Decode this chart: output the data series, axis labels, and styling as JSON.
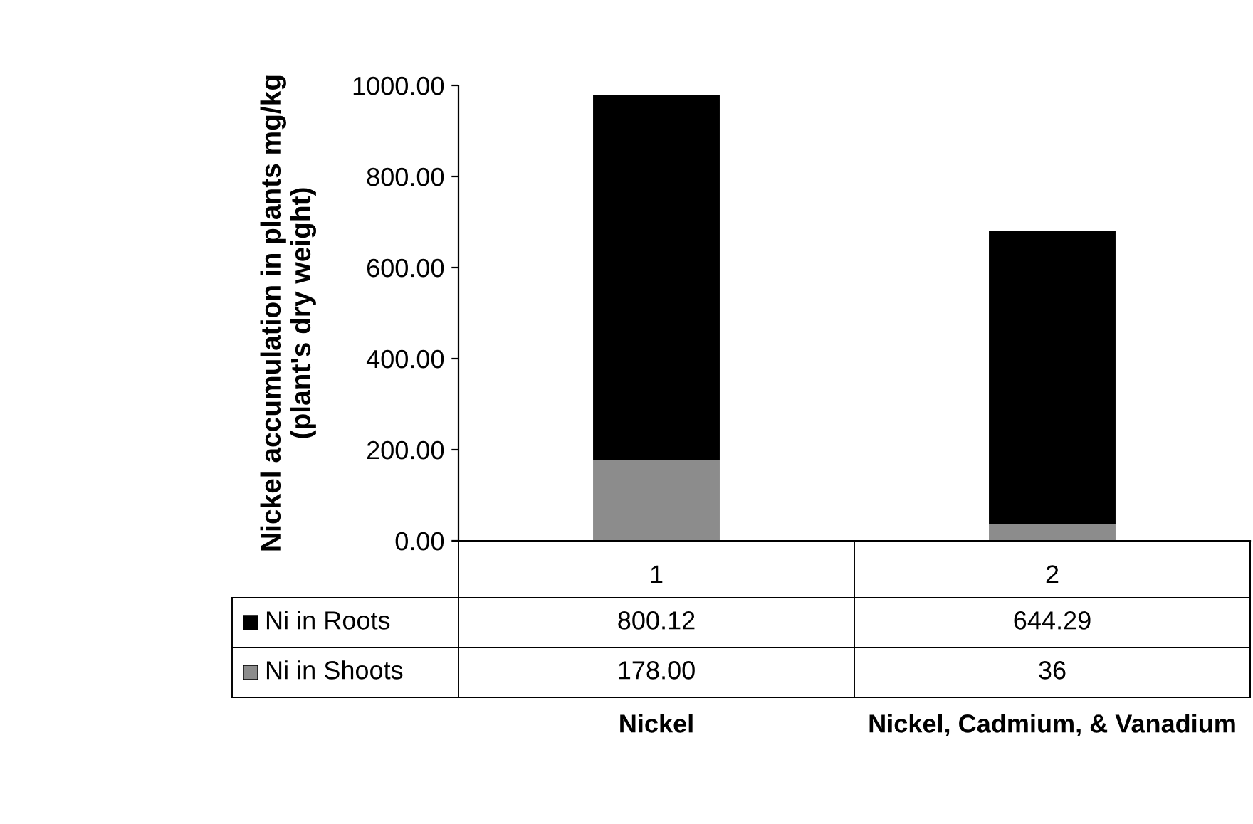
{
  "chart_data": {
    "type": "bar",
    "stacked": true,
    "ylabel": "Nickel accumulation in plants mg/kg\n(plant's dry weight)",
    "categories": [
      "1",
      "2"
    ],
    "series": [
      {
        "name": "Ni in Shoots",
        "color": "#8c8c8c",
        "values": [
          178.0,
          36
        ],
        "value_labels": [
          "178.00",
          "36"
        ]
      },
      {
        "name": "Ni in Roots",
        "color": "#000000",
        "values": [
          800.12,
          644.29
        ],
        "value_labels": [
          "800.12",
          "644.29"
        ]
      }
    ],
    "ylim": [
      0,
      1000
    ],
    "yticks": [
      {
        "value": 0,
        "label": "0.00"
      },
      {
        "value": 200,
        "label": "200.00"
      },
      {
        "value": 400,
        "label": "400.00"
      },
      {
        "value": 600,
        "label": "600.00"
      },
      {
        "value": 800,
        "label": "800.00"
      },
      {
        "value": 1000,
        "label": "1000.00"
      }
    ],
    "grid": false,
    "legend": "bottom left",
    "annotations": [
      "Nickel",
      "Nickel, Cadmium, & Vanadium"
    ]
  }
}
